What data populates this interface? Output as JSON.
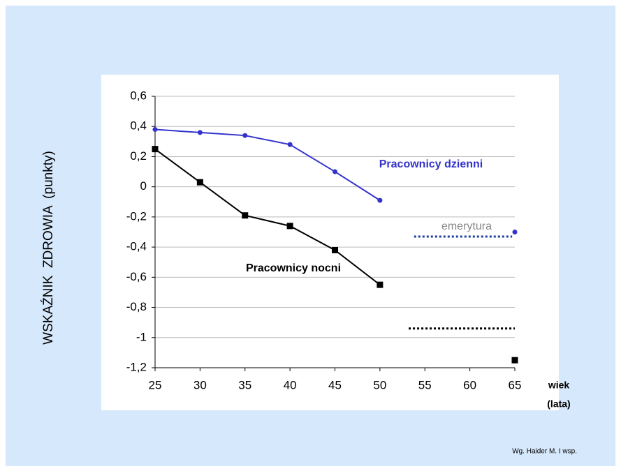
{
  "chart_data": {
    "type": "line",
    "ylabel": "WSKAŹNIK  ZDROWIA  (punkty)",
    "xlabel_lines": [
      "wiek",
      "(lata)"
    ],
    "source": "Wg. Haider M. I wsp.",
    "x": [
      25,
      30,
      35,
      40,
      45,
      50,
      55,
      60,
      65
    ],
    "xlim": [
      25,
      65
    ],
    "xticks": [
      25,
      30,
      35,
      40,
      45,
      50,
      55,
      60,
      65
    ],
    "ylim": [
      -1.2,
      0.6
    ],
    "yticks": [
      {
        "value": 0.6,
        "label": "0,6"
      },
      {
        "value": 0.4,
        "label": "0,4"
      },
      {
        "value": 0.2,
        "label": "0,2"
      },
      0,
      {
        "value": -0.2,
        "label": "-0,2"
      },
      {
        "value": -0.4,
        "label": "-0,4"
      },
      {
        "value": -0.6,
        "label": "-0,6"
      },
      {
        "value": -0.8,
        "label": "-0,8"
      },
      -1,
      {
        "value": -1.2,
        "label": "-1,2"
      }
    ],
    "grid": true,
    "series": [
      {
        "name": "Pracownicy dzienni",
        "color": "#3333cc",
        "marker": "circle",
        "values": [
          0.38,
          0.36,
          0.34,
          0.28,
          0.1,
          -0.09,
          null,
          null,
          -0.3
        ]
      },
      {
        "name": "Pracownicy nocni",
        "color": "#000000",
        "marker": "square",
        "values": [
          0.25,
          0.03,
          -0.19,
          -0.26,
          -0.42,
          -0.65,
          null,
          null,
          -1.15
        ]
      }
    ],
    "dotted_lines": [
      {
        "label": "emerytura",
        "color": "#1f3f9f",
        "y": -0.33,
        "xrange": [
          53.8,
          64.7
        ]
      },
      {
        "color": "#000000",
        "y": -0.94,
        "xrange": [
          53.2,
          65
        ]
      }
    ]
  }
}
